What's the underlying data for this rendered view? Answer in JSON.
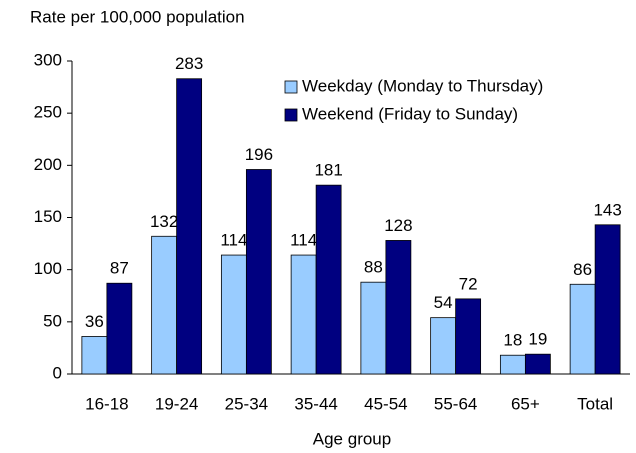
{
  "chart_data": {
    "type": "bar",
    "ylabel": "Rate per 100,000 population",
    "xlabel": "Age group",
    "categories": [
      "16-18",
      "19-24",
      "25-34",
      "35-44",
      "45-54",
      "55-64",
      "65+",
      "Total"
    ],
    "series": [
      {
        "name": "Weekday (Monday to Thursday)",
        "color": "#99ccff",
        "values": [
          36,
          132,
          114,
          114,
          88,
          54,
          18,
          86
        ]
      },
      {
        "name": "Weekend (Friday to Sunday)",
        "color": "#000080",
        "values": [
          87,
          283,
          196,
          181,
          128,
          72,
          19,
          143
        ]
      }
    ],
    "ylim": [
      0,
      300
    ],
    "yticks": [
      0,
      50,
      100,
      150,
      200,
      250,
      300
    ],
    "grid": false,
    "legend": "upper right"
  }
}
